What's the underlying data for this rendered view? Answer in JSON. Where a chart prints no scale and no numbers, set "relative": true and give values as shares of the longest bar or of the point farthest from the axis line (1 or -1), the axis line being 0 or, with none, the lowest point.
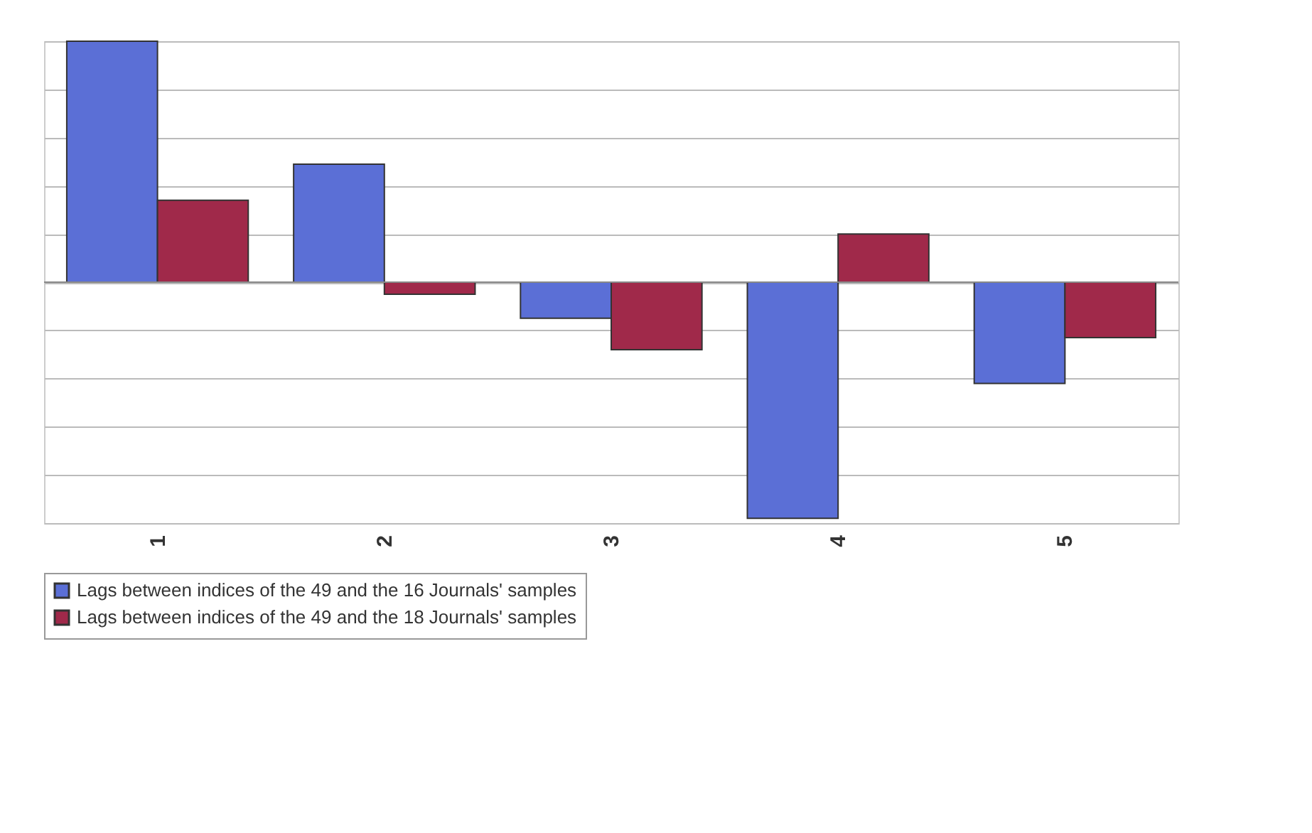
{
  "chart_data": {
    "type": "bar",
    "relative": true,
    "categories": [
      "1",
      "2",
      "3",
      "4",
      "5"
    ],
    "series": [
      {
        "name": "Lags between indices of the 49 and the 16 Journals' samples",
        "color": "#5b6fd6",
        "values": [
          1,
          0.49,
          -0.15,
          -0.98,
          -0.42
        ]
      },
      {
        "name": "Lags between indices of the 49 and the 18 Journals' samples",
        "color": "#a0294a",
        "values": [
          0.34,
          -0.05,
          -0.28,
          0.2,
          -0.23
        ]
      }
    ],
    "grid": "y",
    "legend": "bottom"
  }
}
